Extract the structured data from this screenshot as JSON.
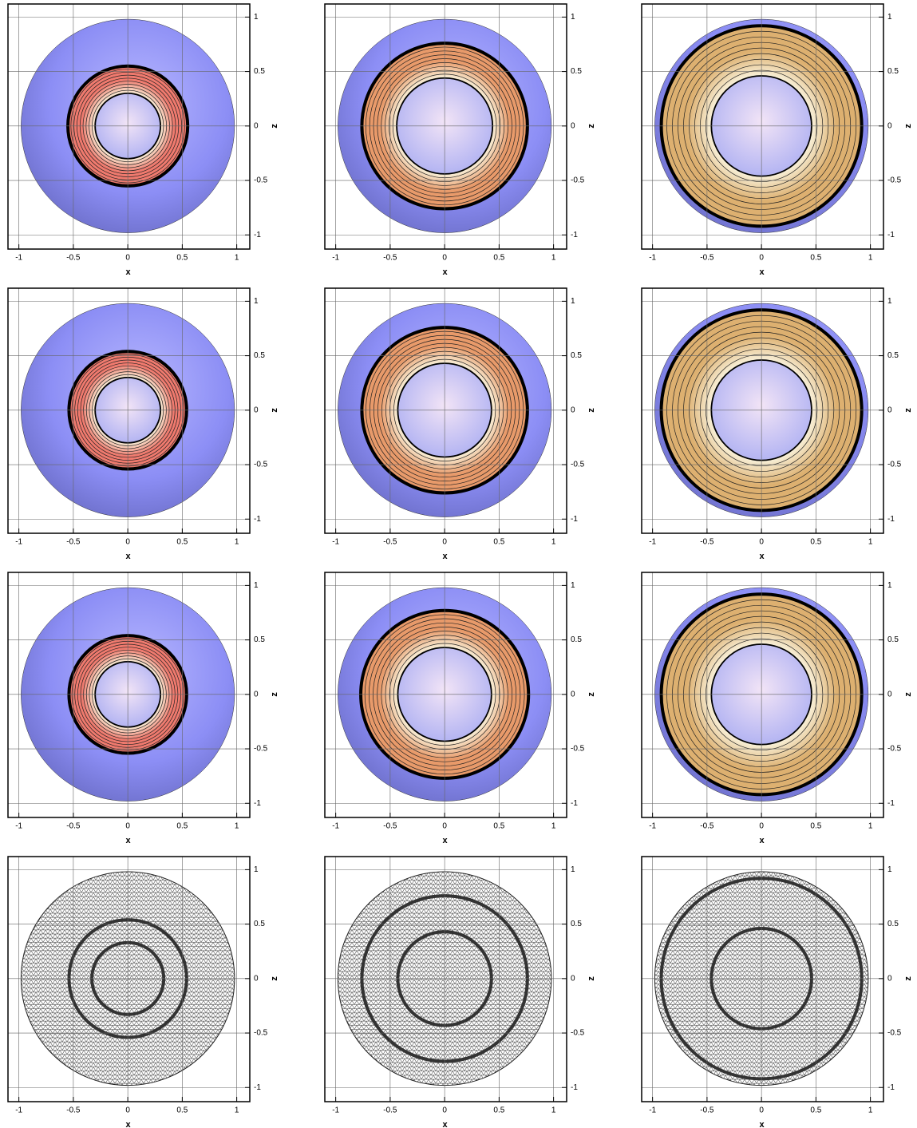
{
  "chart_data": [
    {
      "type": "contour",
      "xlabel": "x",
      "ylabel": "z",
      "xlim": [
        -1.1,
        1.12
      ],
      "ylim": [
        -1.13,
        1.12
      ],
      "xticks": [
        -1,
        -0.5,
        0,
        0.5,
        1
      ],
      "yticks": [
        -1,
        -0.5,
        0,
        0.5,
        1
      ],
      "sphere_radius": 0.98,
      "front_radii": [
        0.55,
        0.3
      ],
      "color": "#f07a6e"
    },
    {
      "type": "contour",
      "xlabel": "x",
      "ylabel": "z",
      "xlim": [
        -1.1,
        1.12
      ],
      "ylim": [
        -1.13,
        1.12
      ],
      "xticks": [
        -1,
        -0.5,
        0,
        0.5,
        1
      ],
      "yticks": [
        -1,
        -0.5,
        0,
        0.5,
        1
      ],
      "sphere_radius": 0.98,
      "front_radii": [
        0.76,
        0.44
      ],
      "color": "#e89a6a"
    },
    {
      "type": "contour",
      "xlabel": "x",
      "ylabel": "z",
      "xlim": [
        -1.1,
        1.12
      ],
      "ylim": [
        -1.13,
        1.12
      ],
      "xticks": [
        -1,
        -0.5,
        0,
        0.5,
        1
      ],
      "yticks": [
        -1,
        -0.5,
        0,
        0.5,
        1
      ],
      "sphere_radius": 0.98,
      "front_radii": [
        0.92,
        0.46
      ],
      "color": "#ddb070"
    },
    {
      "type": "contour",
      "xlabel": "x",
      "ylabel": "z",
      "xlim": [
        -1.1,
        1.12
      ],
      "ylim": [
        -1.13,
        1.12
      ],
      "xticks": [
        -1,
        -0.5,
        0,
        0.5,
        1
      ],
      "yticks": [
        -1,
        -0.5,
        0,
        0.5,
        1
      ],
      "sphere_radius": 0.98,
      "front_radii": [
        0.54,
        0.3
      ],
      "color": "#f07a6e"
    },
    {
      "type": "contour",
      "xlabel": "x",
      "ylabel": "z",
      "xlim": [
        -1.1,
        1.12
      ],
      "ylim": [
        -1.13,
        1.12
      ],
      "xticks": [
        -1,
        -0.5,
        0,
        0.5,
        1
      ],
      "yticks": [
        -1,
        -0.5,
        0,
        0.5,
        1
      ],
      "sphere_radius": 0.98,
      "front_radii": [
        0.76,
        0.43
      ],
      "color": "#e89a6a"
    },
    {
      "type": "contour",
      "xlabel": "x",
      "ylabel": "z",
      "xlim": [
        -1.1,
        1.12
      ],
      "ylim": [
        -1.13,
        1.12
      ],
      "xticks": [
        -1,
        -0.5,
        0,
        0.5,
        1
      ],
      "yticks": [
        -1,
        -0.5,
        0,
        0.5,
        1
      ],
      "sphere_radius": 0.98,
      "front_radii": [
        0.92,
        0.46
      ],
      "color": "#ddb070"
    },
    {
      "type": "contour",
      "xlabel": "x",
      "ylabel": "z",
      "xlim": [
        -1.1,
        1.12
      ],
      "ylim": [
        -1.13,
        1.12
      ],
      "xticks": [
        -1,
        -0.5,
        0,
        0.5,
        1
      ],
      "yticks": [
        -1,
        -0.5,
        0,
        0.5,
        1
      ],
      "sphere_radius": 0.98,
      "front_radii": [
        0.54,
        0.3
      ],
      "color": "#f07a6e"
    },
    {
      "type": "contour",
      "xlabel": "x",
      "ylabel": "z",
      "xlim": [
        -1.1,
        1.12
      ],
      "ylim": [
        -1.13,
        1.12
      ],
      "xticks": [
        -1,
        -0.5,
        0,
        0.5,
        1
      ],
      "yticks": [
        -1,
        -0.5,
        0,
        0.5,
        1
      ],
      "sphere_radius": 0.98,
      "front_radii": [
        0.77,
        0.43
      ],
      "color": "#e89a6a"
    },
    {
      "type": "contour",
      "xlabel": "x",
      "ylabel": "z",
      "xlim": [
        -1.1,
        1.12
      ],
      "ylim": [
        -1.13,
        1.12
      ],
      "xticks": [
        -1,
        -0.5,
        0,
        0.5,
        1
      ],
      "yticks": [
        -1,
        -0.5,
        0,
        0.5,
        1
      ],
      "sphere_radius": 0.98,
      "front_radii": [
        0.92,
        0.46
      ],
      "color": "#ddb070"
    },
    {
      "type": "mesh",
      "xlabel": "x",
      "ylabel": "z",
      "xlim": [
        -1.1,
        1.12
      ],
      "ylim": [
        -1.13,
        1.12
      ],
      "xticks": [
        -1,
        -0.5,
        0,
        0.5,
        1
      ],
      "yticks": [
        -1,
        -0.5,
        0,
        0.5,
        1
      ],
      "sphere_radius": 0.98,
      "front_radii": [
        0.54,
        0.33
      ]
    },
    {
      "type": "mesh",
      "xlabel": "x",
      "ylabel": "z",
      "xlim": [
        -1.1,
        1.12
      ],
      "ylim": [
        -1.13,
        1.12
      ],
      "xticks": [
        -1,
        -0.5,
        0,
        0.5,
        1
      ],
      "yticks": [
        -1,
        -0.5,
        0,
        0.5,
        1
      ],
      "sphere_radius": 0.98,
      "front_radii": [
        0.76,
        0.43
      ]
    },
    {
      "type": "mesh",
      "xlabel": "x",
      "ylabel": "z",
      "xlim": [
        -1.1,
        1.12
      ],
      "ylim": [
        -1.13,
        1.12
      ],
      "xticks": [
        -1,
        -0.5,
        0,
        0.5,
        1
      ],
      "yticks": [
        -1,
        -0.5,
        0,
        0.5,
        1
      ],
      "sphere_radius": 0.98,
      "front_radii": [
        0.92,
        0.46
      ]
    }
  ]
}
